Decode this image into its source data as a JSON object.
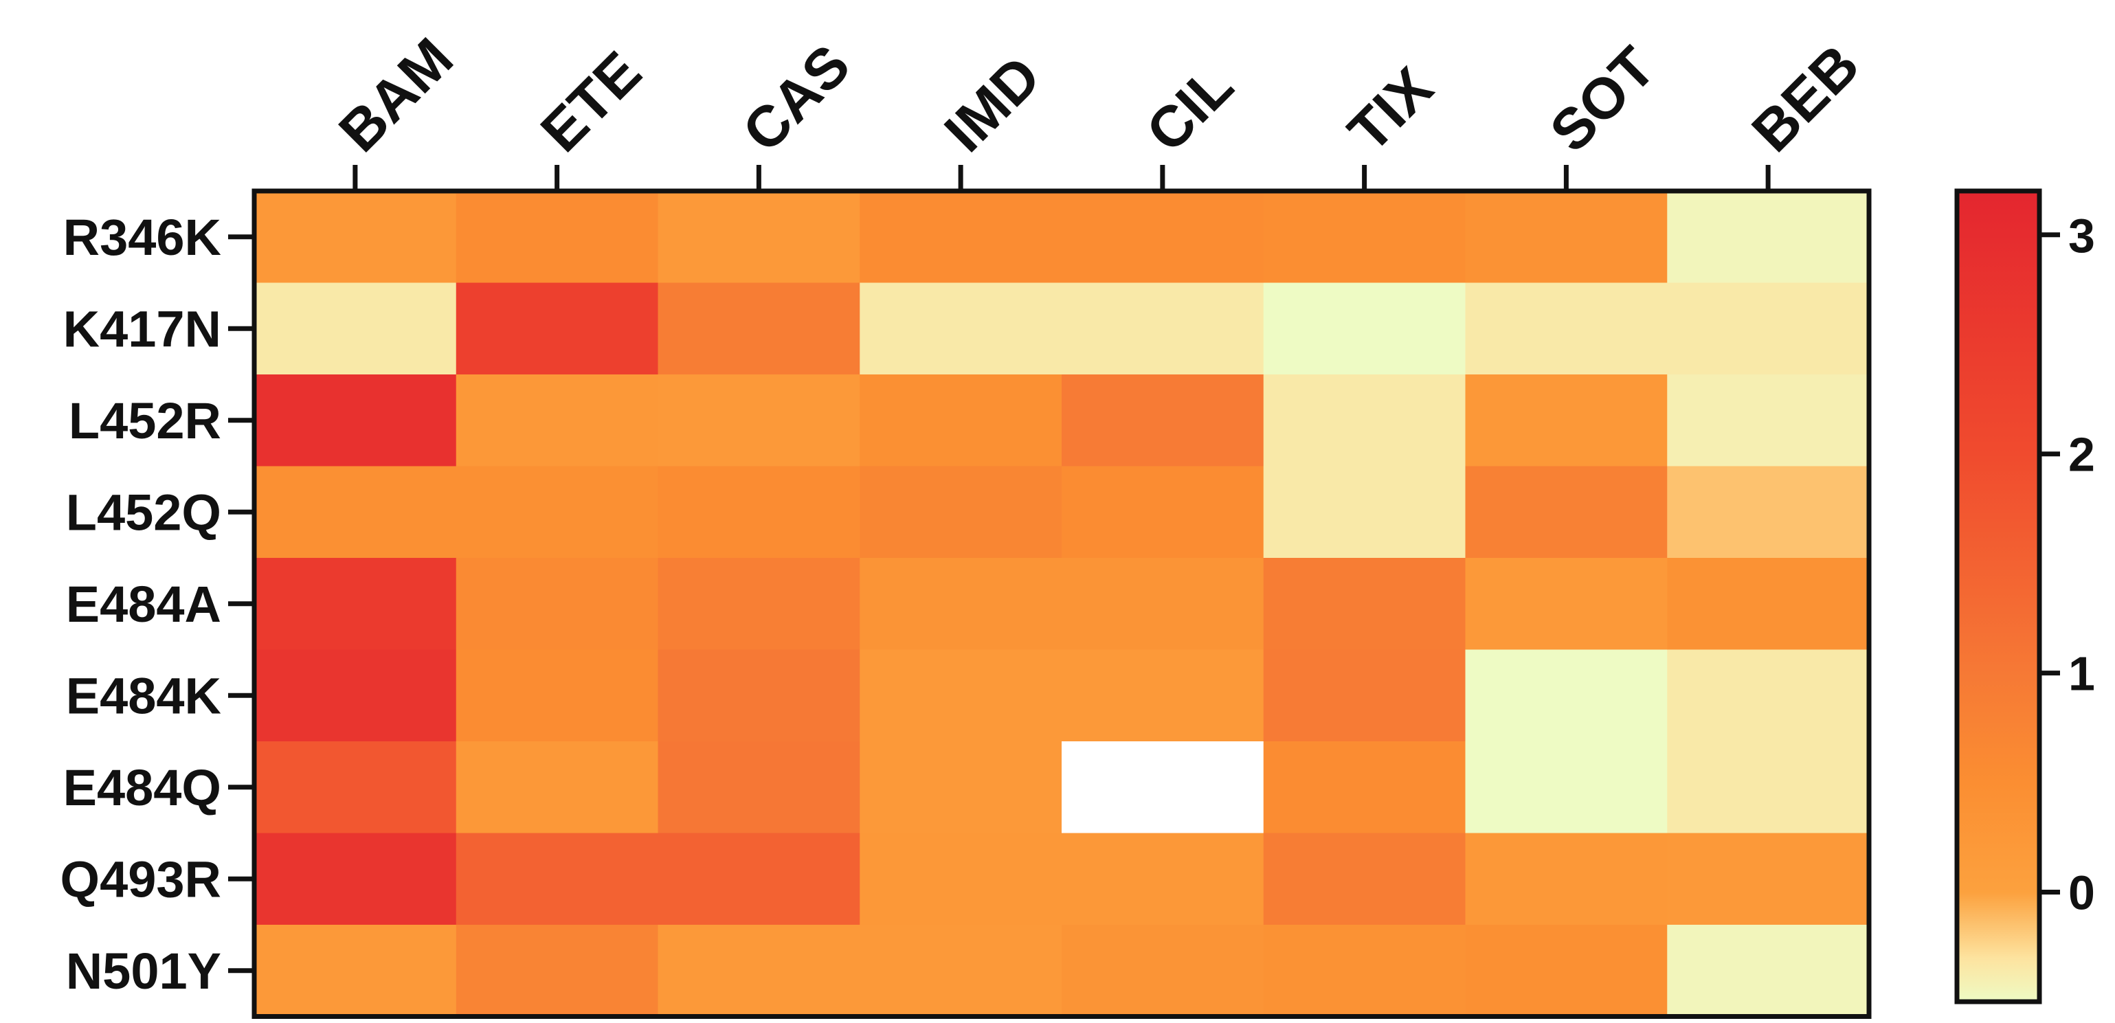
{
  "chart_data": {
    "type": "heatmap",
    "title": "",
    "xlabel": "",
    "ylabel": "",
    "columns": [
      "BAM",
      "ETE",
      "CAS",
      "IMD",
      "CIL",
      "TIX",
      "SOT",
      "BEB"
    ],
    "rows": [
      "R346K",
      "K417N",
      "L452R",
      "L452Q",
      "E484A",
      "E484K",
      "E484Q",
      "Q493R",
      "N501Y"
    ],
    "values": [
      [
        0.25,
        0.55,
        0.2,
        0.55,
        0.55,
        0.5,
        0.4,
        -0.45
      ],
      [
        -0.35,
        2.35,
        0.9,
        -0.35,
        -0.35,
        -0.5,
        -0.35,
        -0.35
      ],
      [
        2.85,
        0.25,
        0.2,
        0.45,
        0.95,
        -0.35,
        0.25,
        -0.4
      ],
      [
        0.45,
        0.45,
        0.55,
        0.7,
        0.55,
        -0.35,
        0.8,
        -0.15
      ],
      [
        2.55,
        0.6,
        0.85,
        0.35,
        0.35,
        0.9,
        0.2,
        0.4
      ],
      [
        2.7,
        0.55,
        1.0,
        0.2,
        0.2,
        0.95,
        -0.5,
        -0.35
      ],
      [
        1.75,
        0.25,
        1.05,
        0.2,
        null,
        0.55,
        -0.5,
        -0.35
      ],
      [
        2.7,
        1.5,
        1.5,
        0.25,
        0.25,
        0.9,
        0.25,
        0.2
      ],
      [
        0.2,
        0.75,
        0.2,
        0.2,
        0.35,
        0.4,
        0.45,
        -0.45
      ]
    ],
    "missing_color": "#ffffff",
    "colorbar": {
      "range": [
        -0.5,
        3.2
      ],
      "ticks": [
        3,
        2,
        1,
        0
      ],
      "tick_labels": [
        "3",
        "2",
        "1",
        "0"
      ],
      "colors": [
        {
          "value": -0.5,
          "color": "#eefbc4"
        },
        {
          "value": -0.3,
          "color": "#fde39f"
        },
        {
          "value": 0.0,
          "color": "#fca13e"
        },
        {
          "value": 0.5,
          "color": "#fb8e32"
        },
        {
          "value": 1.0,
          "color": "#f67935"
        },
        {
          "value": 2.0,
          "color": "#f04b2e"
        },
        {
          "value": 3.2,
          "color": "#e4262f"
        }
      ]
    }
  }
}
